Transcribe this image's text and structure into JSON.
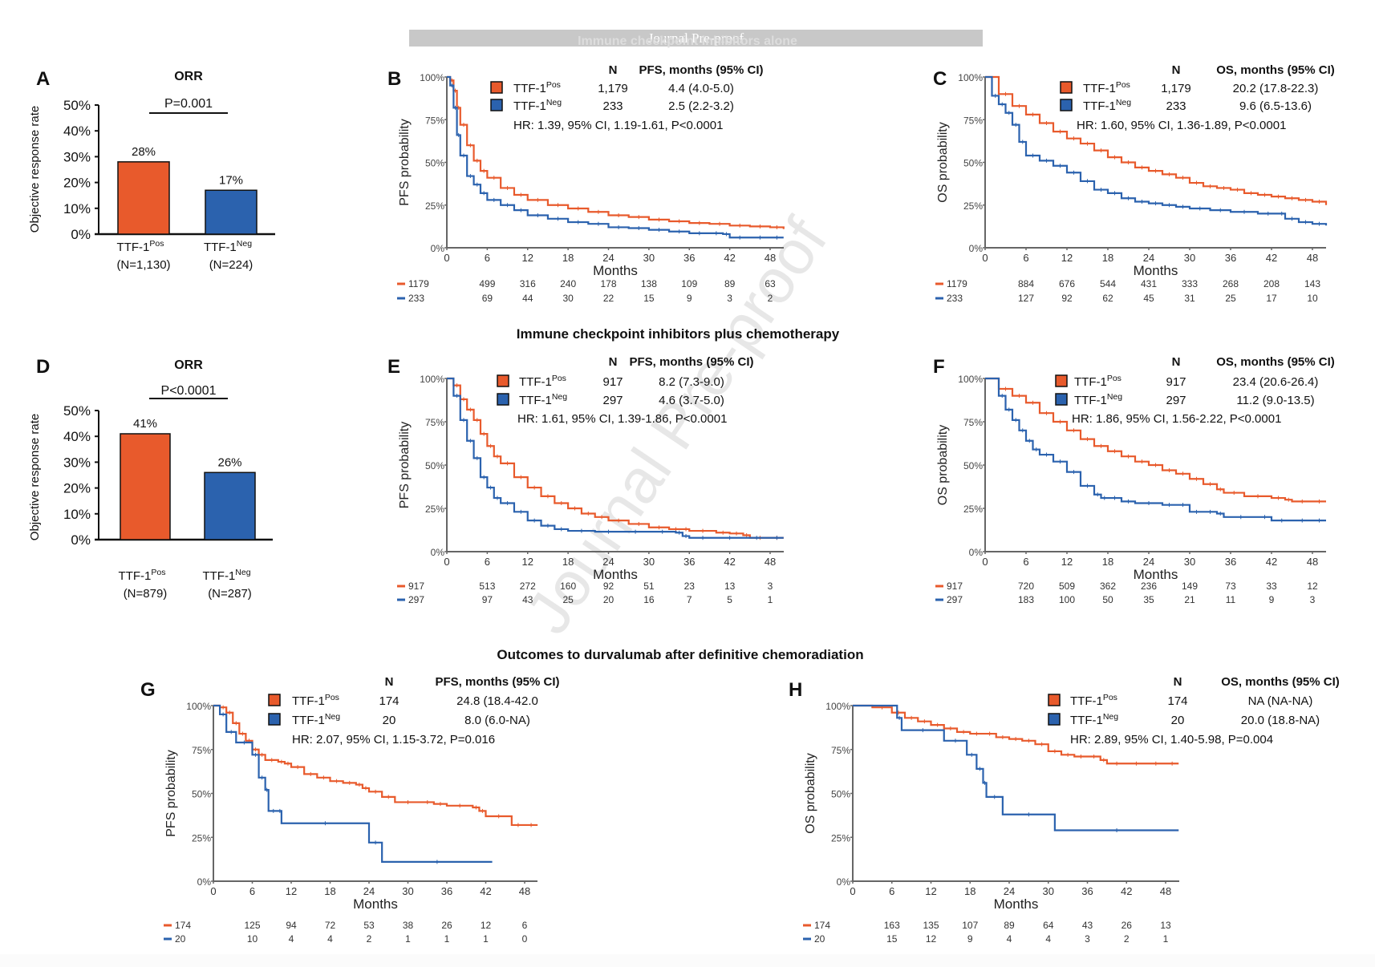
{
  "header": {
    "banner": "Journal Pre-proof",
    "watermark": "Journal Pre-proof",
    "sections": [
      "Immune checkpoint inhibitors alone",
      "Immune checkpoint inhibitors plus chemotherapy",
      "Outcomes to durvalumab after definitive chemoradiation"
    ]
  },
  "colors": {
    "pos": "#E85A2C",
    "neg": "#2B62AE",
    "axis": "#666666"
  },
  "chart_data": [
    {
      "id": "A",
      "type": "bar",
      "title": "ORR",
      "categories": [
        "TTF-1 Pos",
        "TTF-1 Neg"
      ],
      "category_labels": [
        {
          "main": "TTF-1",
          "sup": "Pos",
          "n": "(N=1,130)"
        },
        {
          "main": "TTF-1",
          "sup": "Neg",
          "n": "(N=224)"
        }
      ],
      "values": [
        28,
        17
      ],
      "value_labels": [
        "28%",
        "17%"
      ],
      "ylabel": "Objective response rate",
      "ylim": [
        0,
        50
      ],
      "yticks": [
        "0%",
        "10%",
        "20%",
        "30%",
        "40%",
        "50%"
      ],
      "pvalue": "P=0.001"
    },
    {
      "id": "B",
      "type": "line",
      "ylabel": "PFS probability",
      "xlabel": "Months",
      "xlim": [
        0,
        50
      ],
      "ylim": [
        0,
        100
      ],
      "xticks": [
        0,
        6,
        12,
        18,
        24,
        30,
        36,
        42,
        48
      ],
      "yticks": [
        "0%",
        "25%",
        "50%",
        "75%",
        "100%"
      ],
      "legend": {
        "n_header": "N",
        "stat_header": "PFS, months (95% CI)",
        "rows": [
          {
            "group": "TTF-1",
            "sup": "Pos",
            "n": "1,179",
            "stat": "4.4 (4.0-5.0)"
          },
          {
            "group": "TTF-1",
            "sup": "Neg",
            "n": "233",
            "stat": "2.5 (2.2-3.2)"
          }
        ],
        "hr": "HR: 1.39, 95% CI, 1.19-1.61, P<0.0001"
      },
      "series": [
        {
          "name": "TTF-1 Pos",
          "x": [
            0,
            0.5,
            1,
            1.5,
            2,
            3,
            4,
            5,
            6,
            8,
            10,
            12,
            15,
            18,
            21,
            24,
            27,
            30,
            33,
            36,
            39,
            42,
            45,
            48,
            50
          ],
          "y": [
            100,
            98,
            92,
            82,
            72,
            60,
            51,
            45,
            41,
            35,
            31,
            28,
            25,
            23,
            21,
            19,
            18,
            16.5,
            15.5,
            14.5,
            14,
            13,
            12.5,
            12,
            11
          ],
          "at_risk": [
            1179,
            499,
            316,
            240,
            178,
            138,
            109,
            89,
            63
          ]
        },
        {
          "name": "TTF-1 Neg",
          "x": [
            0,
            0.5,
            1,
            1.5,
            2,
            3,
            4,
            5,
            6,
            8,
            10,
            12,
            15,
            18,
            21,
            24,
            27,
            30,
            33,
            36,
            39,
            41,
            42,
            45,
            48,
            50
          ],
          "y": [
            100,
            95,
            82,
            66,
            54,
            42,
            37,
            32,
            28,
            25,
            22,
            19,
            17,
            15,
            14,
            12,
            11.5,
            10.5,
            9.5,
            8.5,
            8.5,
            8,
            6,
            6,
            6,
            6
          ],
          "at_risk": [
            233,
            69,
            44,
            30,
            22,
            15,
            9,
            3,
            2
          ]
        }
      ]
    },
    {
      "id": "C",
      "type": "line",
      "ylabel": "OS probability",
      "xlabel": "Months",
      "xlim": [
        0,
        50
      ],
      "ylim": [
        0,
        100
      ],
      "xticks": [
        0,
        6,
        12,
        18,
        24,
        30,
        36,
        42,
        48
      ],
      "yticks": [
        "0%",
        "25%",
        "50%",
        "75%",
        "100%"
      ],
      "legend": {
        "n_header": "N",
        "stat_header": "OS, months (95% CI)",
        "rows": [
          {
            "group": "TTF-1",
            "sup": "Pos",
            "n": "1,179",
            "stat": "20.2 (17.8-22.3)"
          },
          {
            "group": "TTF-1",
            "sup": "Neg",
            "n": "233",
            "stat": "9.6 (6.5-13.6)"
          }
        ],
        "hr": "HR: 1.60, 95% CI, 1.36-1.89, P<0.0001"
      },
      "series": [
        {
          "name": "TTF-1 Pos",
          "x": [
            0,
            2,
            4,
            6,
            8,
            10,
            12,
            14,
            16,
            18,
            20,
            22,
            24,
            26,
            28,
            30,
            32,
            34,
            36,
            38,
            40,
            42,
            44,
            46,
            48,
            50
          ],
          "y": [
            100,
            90,
            83,
            78,
            73,
            68,
            64,
            61,
            57,
            53,
            50,
            47,
            45,
            43,
            41,
            38,
            36,
            35,
            34,
            32,
            31,
            30,
            29,
            28,
            27,
            25
          ],
          "at_risk": [
            1179,
            884,
            676,
            544,
            431,
            333,
            268,
            208,
            143
          ]
        },
        {
          "name": "TTF-1 Neg",
          "x": [
            0,
            1,
            2,
            3,
            4,
            5,
            6,
            8,
            10,
            12,
            14,
            16,
            18,
            20,
            22,
            24,
            26,
            28,
            30,
            33,
            36,
            40,
            43,
            44,
            46,
            48,
            50
          ],
          "y": [
            100,
            89,
            84,
            79,
            72,
            62,
            54,
            51,
            48,
            44,
            39,
            34,
            32,
            29,
            27,
            26,
            25,
            24,
            23,
            22,
            21,
            20,
            20,
            17,
            15,
            14,
            13
          ],
          "at_risk": [
            233,
            127,
            92,
            62,
            45,
            31,
            25,
            17,
            10
          ]
        }
      ]
    },
    {
      "id": "D",
      "type": "bar",
      "title": "ORR",
      "categories": [
        "TTF-1 Pos",
        "TTF-1 Neg"
      ],
      "category_labels": [
        {
          "main": "TTF-1",
          "sup": "Pos",
          "n": "(N=879)"
        },
        {
          "main": "TTF-1",
          "sup": "Neg",
          "n": "(N=287)"
        }
      ],
      "values": [
        41,
        26
      ],
      "value_labels": [
        "41%",
        "26%"
      ],
      "ylabel": "Objective response rate",
      "ylim": [
        0,
        50
      ],
      "yticks": [
        "0%",
        "10%",
        "20%",
        "30%",
        "40%",
        "50%"
      ],
      "pvalue": "P<0.0001"
    },
    {
      "id": "E",
      "type": "line",
      "ylabel": "PFS probability",
      "xlabel": "Months",
      "xlim": [
        0,
        50
      ],
      "ylim": [
        0,
        100
      ],
      "xticks": [
        0,
        6,
        12,
        18,
        24,
        30,
        36,
        42,
        48
      ],
      "yticks": [
        "0%",
        "25%",
        "50%",
        "75%",
        "100%"
      ],
      "legend": {
        "n_header": "N",
        "stat_header": "PFS, months (95% CI)",
        "rows": [
          {
            "group": "TTF-1",
            "sup": "Pos",
            "n": "917",
            "stat": "8.2 (7.3-9.0)"
          },
          {
            "group": "TTF-1",
            "sup": "Neg",
            "n": "297",
            "stat": "4.6 (3.7-5.0)"
          }
        ],
        "hr": "HR: 1.61, 95% CI, 1.39-1.86, P<0.0001"
      },
      "series": [
        {
          "name": "TTF-1 Pos",
          "x": [
            0,
            1,
            2,
            3,
            4,
            5,
            6,
            7,
            8,
            10,
            12,
            14,
            16,
            18,
            20,
            22,
            24,
            27,
            30,
            33,
            35,
            36,
            40,
            42,
            44,
            45,
            48,
            50
          ],
          "y": [
            100,
            96,
            88,
            82,
            76,
            68,
            61,
            55,
            51,
            43,
            37,
            32,
            28,
            25,
            22,
            20,
            18,
            16,
            14,
            13,
            13,
            12,
            11,
            10.5,
            9.5,
            8,
            8,
            8
          ],
          "at_risk": [
            917,
            513,
            272,
            160,
            92,
            51,
            23,
            13,
            3
          ]
        },
        {
          "name": "TTF-1 Neg",
          "x": [
            0,
            1,
            2,
            3,
            4,
            5,
            6,
            7,
            8,
            10,
            12,
            14,
            16,
            18,
            22,
            26,
            30,
            34,
            35,
            36,
            40,
            44,
            48,
            50
          ],
          "y": [
            100,
            90,
            76,
            64,
            54,
            43,
            37,
            31,
            28,
            23,
            18,
            15,
            13,
            12,
            11.5,
            11.5,
            11.5,
            11,
            9,
            8,
            8,
            8,
            8,
            8
          ],
          "at_risk": [
            297,
            97,
            43,
            25,
            20,
            16,
            7,
            5,
            1
          ]
        }
      ]
    },
    {
      "id": "F",
      "type": "line",
      "ylabel": "OS probability",
      "xlabel": "Months",
      "xlim": [
        0,
        50
      ],
      "ylim": [
        0,
        100
      ],
      "xticks": [
        0,
        6,
        12,
        18,
        24,
        30,
        36,
        42,
        48
      ],
      "yticks": [
        "0%",
        "25%",
        "50%",
        "75%",
        "100%"
      ],
      "legend": {
        "n_header": "N",
        "stat_header": "OS, months (95% CI)",
        "rows": [
          {
            "group": "TTF-1",
            "sup": "Pos",
            "n": "917",
            "stat": "23.4 (20.6-26.4)"
          },
          {
            "group": "TTF-1",
            "sup": "Neg",
            "n": "297",
            "stat": "11.2 (9.0-13.5)"
          }
        ],
        "hr": "HR: 1.86, 95% CI, 1.56-2.22, P<0.0001"
      },
      "series": [
        {
          "name": "TTF-1 Pos",
          "x": [
            0,
            2,
            4,
            6,
            8,
            10,
            12,
            14,
            16,
            18,
            20,
            22,
            24,
            26,
            28,
            30,
            32,
            34,
            35,
            38,
            42,
            44,
            45,
            48,
            50
          ],
          "y": [
            100,
            94,
            90,
            86,
            80,
            75,
            70,
            65,
            61,
            58,
            55,
            52,
            50,
            47,
            45,
            42,
            39,
            36,
            34,
            32,
            31,
            30,
            29,
            29,
            29
          ],
          "at_risk": [
            917,
            720,
            509,
            362,
            236,
            149,
            73,
            33,
            12
          ]
        },
        {
          "name": "TTF-1 Neg",
          "x": [
            0,
            2,
            3,
            4,
            5,
            6,
            7,
            8,
            10,
            12,
            14,
            16,
            17,
            18,
            20,
            22,
            26,
            28,
            30,
            32,
            34,
            35,
            40,
            42,
            45,
            48,
            50
          ],
          "y": [
            100,
            90,
            82,
            76,
            70,
            64,
            59,
            56,
            52,
            46,
            38,
            33,
            31,
            31,
            29,
            28,
            27,
            27,
            23,
            23,
            22,
            20,
            20,
            18,
            18,
            18,
            18
          ],
          "at_risk": [
            297,
            183,
            100,
            50,
            35,
            21,
            11,
            9,
            3
          ]
        }
      ]
    },
    {
      "id": "G",
      "type": "line",
      "ylabel": "PFS probability",
      "xlabel": "Months",
      "xlim": [
        0,
        50
      ],
      "ylim": [
        0,
        100
      ],
      "xticks": [
        0,
        6,
        12,
        18,
        24,
        30,
        36,
        42,
        48
      ],
      "yticks": [
        "0%",
        "25%",
        "50%",
        "75%",
        "100%"
      ],
      "legend": {
        "n_header": "N",
        "stat_header": "PFS, months (95% CI)",
        "rows": [
          {
            "group": "TTF-1",
            "sup": "Pos",
            "n": "174",
            "stat": "24.8 (18.4-42.0"
          },
          {
            "group": "TTF-1",
            "sup": "Neg",
            "n": "20",
            "stat": "8.0 (6.0-NA)"
          }
        ],
        "hr": "HR: 2.07, 95% CI, 1.15-3.72, P=0.016"
      },
      "series": [
        {
          "name": "TTF-1 Pos",
          "x": [
            0,
            1,
            2,
            3,
            4,
            5,
            6,
            7,
            8,
            10,
            11,
            12,
            14,
            16,
            18,
            20,
            22,
            23,
            24,
            26,
            28,
            32,
            34,
            36,
            40,
            41,
            42,
            46,
            48,
            50
          ],
          "y": [
            100,
            99,
            96,
            90,
            84,
            80,
            75,
            72,
            69,
            68,
            67,
            65,
            61,
            59,
            57,
            56,
            55,
            53,
            51,
            48,
            45,
            45,
            44,
            43,
            42,
            40,
            37,
            32,
            32,
            32
          ],
          "at_risk": [
            174,
            125,
            94,
            72,
            53,
            38,
            26,
            12,
            6
          ]
        },
        {
          "name": "TTF-1 Neg",
          "x": [
            0,
            1,
            2,
            3.5,
            6,
            7,
            8,
            8.5,
            10,
            10.5,
            24,
            26,
            43
          ],
          "y": [
            100,
            95,
            85,
            79,
            72,
            59,
            52,
            40,
            40,
            33,
            22,
            11,
            11
          ],
          "at_risk": [
            20,
            10,
            4,
            4,
            2,
            1,
            1,
            1,
            0
          ]
        }
      ]
    },
    {
      "id": "H",
      "type": "line",
      "ylabel": "OS probability",
      "xlabel": "Months",
      "xlim": [
        0,
        50
      ],
      "ylim": [
        0,
        100
      ],
      "xticks": [
        0,
        6,
        12,
        18,
        24,
        30,
        36,
        42,
        48
      ],
      "yticks": [
        "0%",
        "25%",
        "50%",
        "75%",
        "100%"
      ],
      "legend": {
        "n_header": "N",
        "stat_header": "OS, months (95% CI)",
        "rows": [
          {
            "group": "TTF-1",
            "sup": "Pos",
            "n": "174",
            "stat": "NA (NA-NA)"
          },
          {
            "group": "TTF-1",
            "sup": "Neg",
            "n": "20",
            "stat": "20.0 (18.8-NA)"
          }
        ],
        "hr": "HR: 2.89, 95% CI, 1.40-5.98, P=0.004"
      },
      "series": [
        {
          "name": "TTF-1 Pos",
          "x": [
            0,
            3,
            6,
            8,
            10,
            12,
            14,
            16,
            18,
            20,
            22,
            24,
            26,
            28,
            30,
            32,
            34,
            36,
            38,
            39,
            42,
            45,
            48,
            50
          ],
          "y": [
            100,
            99,
            96,
            93,
            91,
            89,
            87,
            85,
            84,
            84,
            82,
            81,
            80,
            78,
            74,
            72,
            71,
            71,
            69,
            67,
            67,
            67,
            67,
            67
          ],
          "at_risk": [
            174,
            163,
            135,
            107,
            89,
            64,
            43,
            26,
            13
          ]
        },
        {
          "name": "TTF-1 Neg",
          "x": [
            0,
            6.8,
            7.5,
            14,
            17.5,
            19,
            20,
            20.5,
            23,
            31,
            50
          ],
          "y": [
            100,
            93,
            86,
            80,
            72,
            64,
            56,
            48,
            38,
            29,
            29
          ],
          "at_risk": [
            20,
            15,
            12,
            9,
            4,
            4,
            3,
            2,
            1
          ]
        }
      ]
    }
  ]
}
